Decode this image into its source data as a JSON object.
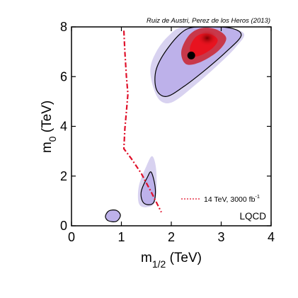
{
  "chart_data": {
    "type": "contour",
    "credit": "Ruiz de Austri, Perez de los Heros (2013)",
    "xlabel": {
      "main": "m",
      "sub": "1/2",
      "unit": " (TeV)"
    },
    "ylabel": {
      "main": "m",
      "sub": "0",
      "unit": " (TeV)"
    },
    "xlim": [
      0,
      4
    ],
    "ylim": [
      0,
      8
    ],
    "xticks": [
      0,
      1,
      2,
      3,
      4
    ],
    "yticks": [
      0,
      2,
      4,
      6,
      8
    ],
    "xtick_labels": [
      "0",
      "1",
      "2",
      "3",
      "4"
    ],
    "ytick_labels": [
      "0",
      "2",
      "4",
      "6",
      "8"
    ],
    "model_label": "LQCD",
    "best_fit": {
      "x": 2.4,
      "y": 6.85
    },
    "reach_curve": {
      "legend": "14 TeV, 3000 fb",
      "legend_sup": "-1",
      "color": "#e0102a",
      "points": [
        [
          1.05,
          7.85
        ],
        [
          1.07,
          7.0
        ],
        [
          1.1,
          6.0
        ],
        [
          1.13,
          5.3
        ],
        [
          1.1,
          4.6
        ],
        [
          1.07,
          3.9
        ],
        [
          1.05,
          3.1
        ],
        [
          1.2,
          2.7
        ],
        [
          1.4,
          2.1
        ],
        [
          1.6,
          1.35
        ],
        [
          1.8,
          0.55
        ]
      ]
    },
    "regions": [
      {
        "name": "main-region",
        "halo": [
          [
            1.65,
            5.5
          ],
          [
            1.58,
            6.3
          ],
          [
            1.7,
            7.0
          ],
          [
            1.95,
            7.65
          ],
          [
            2.25,
            8.0
          ],
          [
            3.0,
            8.0
          ],
          [
            3.45,
            7.75
          ],
          [
            3.3,
            7.2
          ],
          [
            2.95,
            6.5
          ],
          [
            2.5,
            5.7
          ],
          [
            2.05,
            5.0
          ],
          [
            1.8,
            5.0
          ]
        ],
        "contour": [
          [
            1.7,
            5.5
          ],
          [
            1.7,
            6.3
          ],
          [
            1.95,
            7.2
          ],
          [
            2.3,
            7.9
          ],
          [
            2.7,
            8.0
          ],
          [
            3.2,
            7.95
          ],
          [
            3.4,
            7.65
          ],
          [
            3.1,
            7.0
          ],
          [
            2.7,
            6.3
          ],
          [
            2.25,
            5.6
          ],
          [
            1.9,
            5.2
          ]
        ],
        "core": [
          [
            2.2,
            7.0
          ],
          [
            2.35,
            7.65
          ],
          [
            2.6,
            7.95
          ],
          [
            2.9,
            7.9
          ],
          [
            3.1,
            7.55
          ],
          [
            2.95,
            7.05
          ],
          [
            2.6,
            6.6
          ],
          [
            2.3,
            6.5
          ]
        ]
      },
      {
        "name": "middle-region",
        "halo": [
          [
            1.35,
            0.9
          ],
          [
            1.35,
            1.6
          ],
          [
            1.5,
            2.4
          ],
          [
            1.62,
            2.8
          ],
          [
            1.7,
            2.2
          ],
          [
            1.68,
            1.0
          ],
          [
            1.5,
            0.75
          ]
        ],
        "contour": [
          [
            1.42,
            1.0
          ],
          [
            1.4,
            1.4
          ],
          [
            1.52,
            1.95
          ],
          [
            1.6,
            2.15
          ],
          [
            1.68,
            1.5
          ],
          [
            1.65,
            0.95
          ],
          [
            1.52,
            0.85
          ]
        ],
        "core": []
      },
      {
        "name": "low-region",
        "halo": [
          [
            0.68,
            0.38
          ],
          [
            0.75,
            0.6
          ],
          [
            0.9,
            0.62
          ],
          [
            0.98,
            0.42
          ],
          [
            0.9,
            0.18
          ],
          [
            0.74,
            0.2
          ]
        ],
        "contour": [
          [
            0.68,
            0.38
          ],
          [
            0.75,
            0.6
          ],
          [
            0.9,
            0.62
          ],
          [
            0.98,
            0.42
          ],
          [
            0.9,
            0.18
          ],
          [
            0.74,
            0.2
          ]
        ],
        "core": []
      }
    ],
    "colors": {
      "halo": "#d8d2f0",
      "fill": "#b4a6e8",
      "core_outer": "#c8384a",
      "core_inner": "#e8131f",
      "hot": "#7a0000",
      "contour": "#000000",
      "axis": "#000000"
    }
  }
}
